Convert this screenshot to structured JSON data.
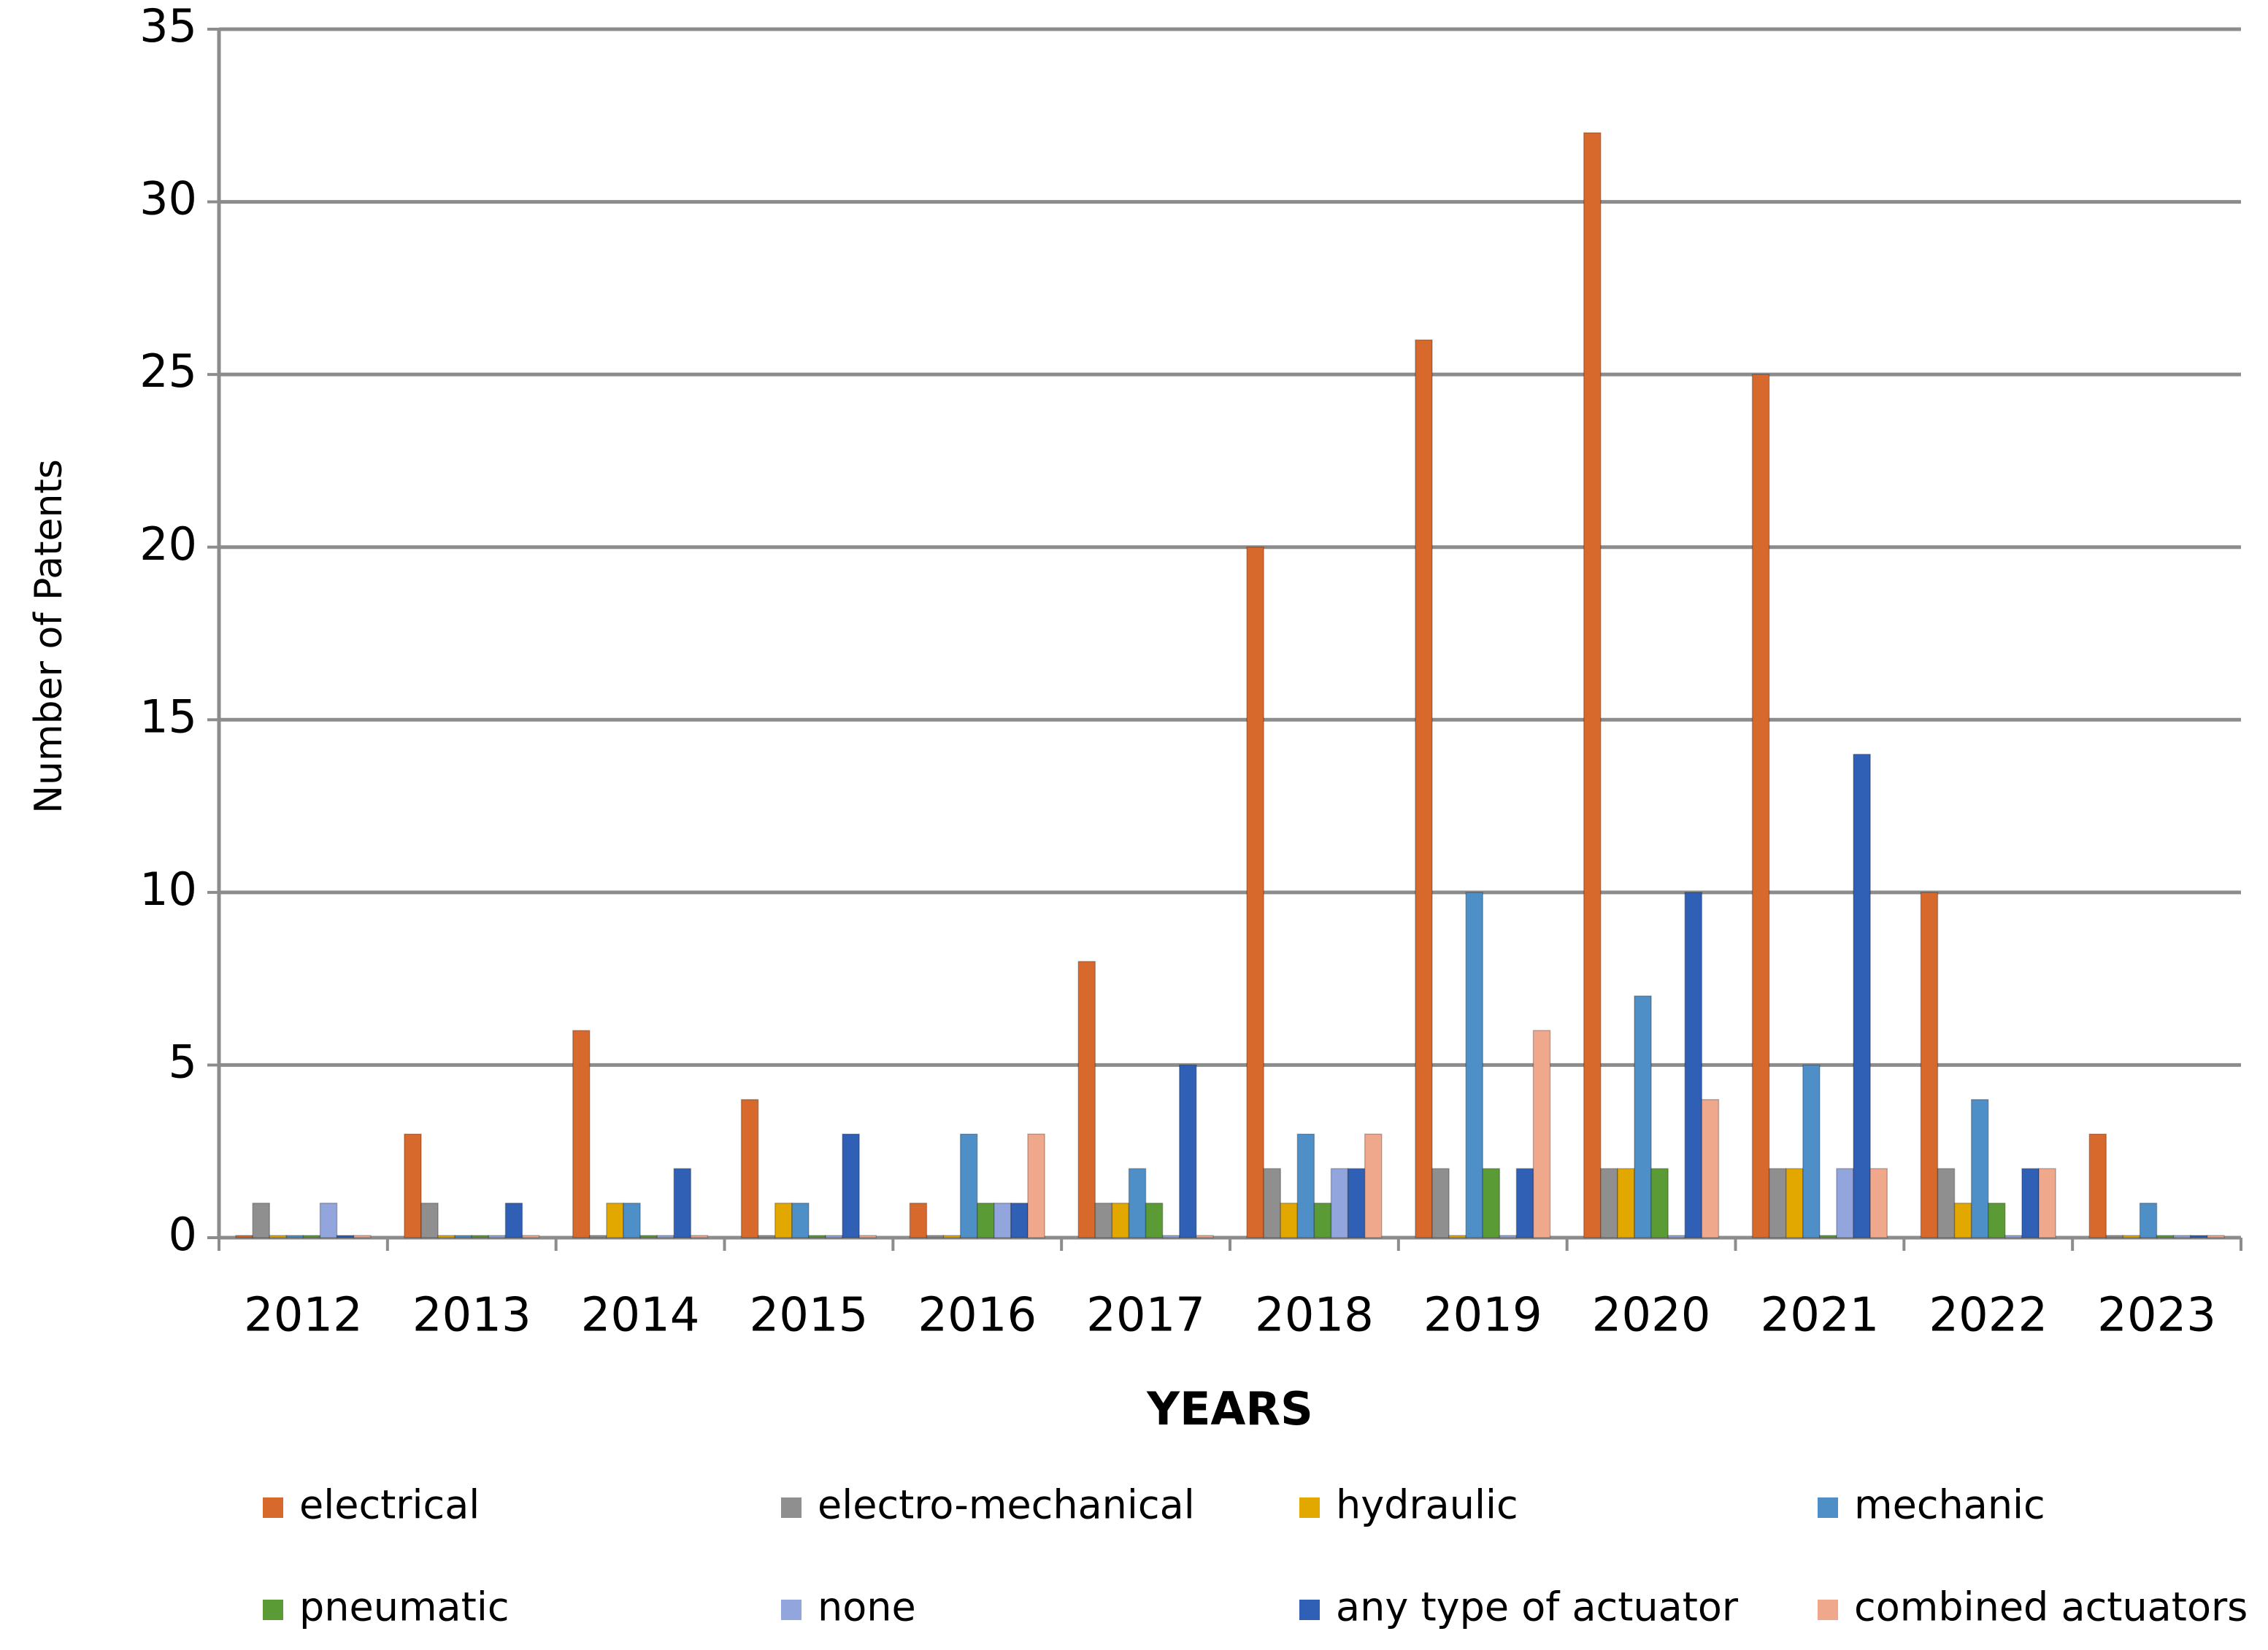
{
  "chart_data": {
    "type": "bar",
    "x_label": "YEARS",
    "y_label": "Number of Patents",
    "categories": [
      "2012",
      "2013",
      "2014",
      "2015",
      "2016",
      "2017",
      "2018",
      "2019",
      "2020",
      "2021",
      "2022",
      "2023"
    ],
    "series": [
      {
        "name": "electrical",
        "color": "#d7692c",
        "values": [
          0,
          3,
          6,
          4,
          1,
          8,
          20,
          26,
          32,
          25,
          10,
          3
        ]
      },
      {
        "name": "electro-mechanical",
        "color": "#8f8f8f",
        "values": [
          1,
          1,
          0,
          0,
          0,
          1,
          2,
          2,
          2,
          2,
          2,
          0
        ]
      },
      {
        "name": "hydraulic",
        "color": "#e3a800",
        "values": [
          0,
          0,
          1,
          1,
          0,
          1,
          1,
          0,
          2,
          2,
          1,
          0
        ]
      },
      {
        "name": "mechanic",
        "color": "#4d8fc6",
        "values": [
          0,
          0,
          1,
          1,
          3,
          2,
          3,
          10,
          7,
          5,
          4,
          1
        ]
      },
      {
        "name": "pneumatic",
        "color": "#5a9b36",
        "values": [
          0,
          0,
          0,
          0,
          1,
          1,
          1,
          2,
          2,
          0,
          1,
          0
        ]
      },
      {
        "name": "none",
        "color": "#92a5dc",
        "values": [
          1,
          0,
          0,
          0,
          1,
          0,
          2,
          0,
          0,
          2,
          0,
          0
        ]
      },
      {
        "name": "any type of actuator",
        "color": "#3060b5",
        "values": [
          0,
          1,
          2,
          3,
          1,
          5,
          2,
          2,
          10,
          14,
          2,
          0
        ]
      },
      {
        "name": "combined actuators",
        "color": "#f0a88c",
        "values": [
          0,
          0,
          0,
          0,
          3,
          0,
          3,
          6,
          4,
          2,
          2,
          0
        ]
      }
    ],
    "ylim": [
      0,
      35
    ],
    "yticks": [
      0,
      5,
      10,
      15,
      20,
      25,
      30,
      35
    ],
    "grid": true
  }
}
